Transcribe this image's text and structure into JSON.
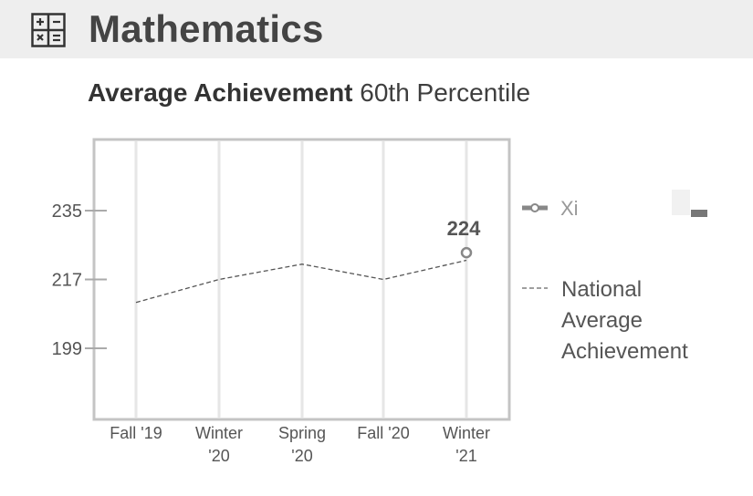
{
  "header": {
    "title": "Mathematics",
    "icon": "calculator-icon"
  },
  "chart_data": {
    "type": "line",
    "title_bold": "Average Achievement",
    "title_rest": "60th Percentile",
    "categories": [
      "Fall '19",
      "Winter '20",
      "Spring '20",
      "Fall '20",
      "Winter '21"
    ],
    "category_lines": [
      [
        "Fall '19"
      ],
      [
        "Winter",
        "'20"
      ],
      [
        "Spring",
        "'20"
      ],
      [
        "Fall '20"
      ],
      [
        "Winter",
        "'21"
      ]
    ],
    "yticks": [
      235,
      217,
      199
    ],
    "series": [
      {
        "name": "National Average Achievement",
        "legend_lines": [
          "National",
          "Average",
          "Achievement"
        ],
        "style": "dashed",
        "color": "#555555",
        "values": [
          211,
          217,
          221,
          217,
          222
        ]
      },
      {
        "name": "Xi... (obscured)",
        "style": "point",
        "color": "#888888",
        "values": [
          null,
          null,
          null,
          null,
          224
        ],
        "data_label": "224"
      }
    ],
    "legend_placement": "right",
    "grid": "vertical"
  }
}
